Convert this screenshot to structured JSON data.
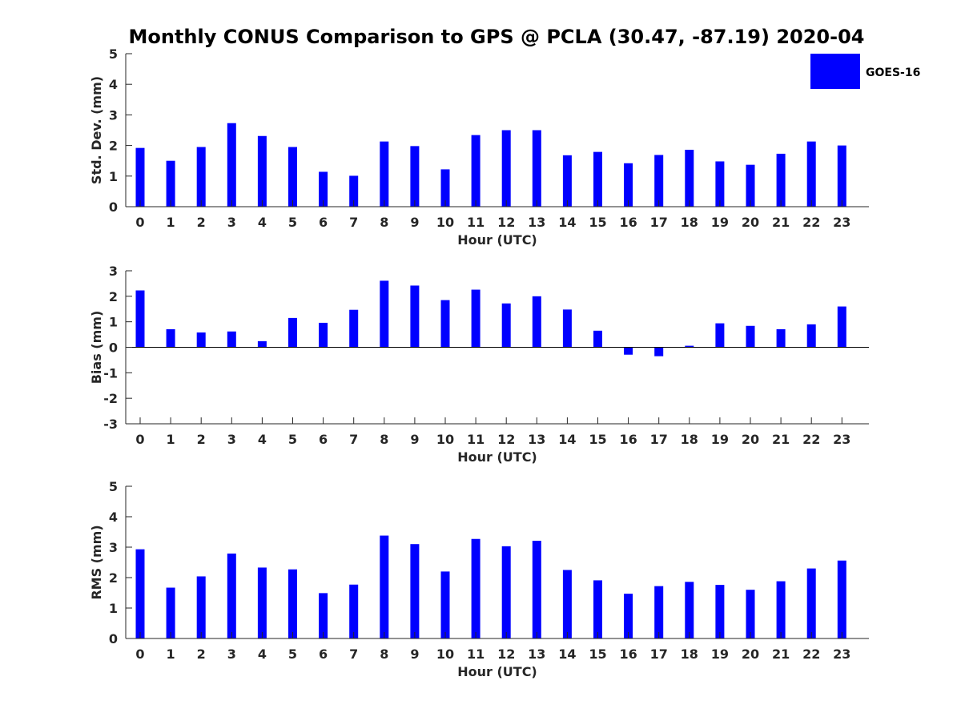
{
  "title": "Monthly CONUS Comparison to GPS @ PCLA (30.47, -87.19) 2020-04",
  "legend": {
    "label": "GOES-16",
    "color": "#0000ff",
    "placement": "top-right"
  },
  "chart_data": [
    {
      "type": "bar",
      "ylabel": "Std. Dev. (mm)",
      "xlabel": "Hour (UTC)",
      "ylim": [
        0,
        5
      ],
      "yticks": [
        0,
        1,
        2,
        3,
        4,
        5
      ],
      "categories": [
        "0",
        "1",
        "2",
        "3",
        "4",
        "5",
        "6",
        "7",
        "8",
        "9",
        "10",
        "11",
        "12",
        "13",
        "14",
        "15",
        "16",
        "17",
        "18",
        "19",
        "20",
        "21",
        "22",
        "23"
      ],
      "series": [
        {
          "name": "GOES-16",
          "color": "#0000ff",
          "values": [
            1.92,
            1.5,
            1.95,
            2.73,
            2.31,
            1.95,
            1.14,
            1.01,
            2.13,
            1.98,
            1.22,
            2.34,
            2.5,
            2.5,
            1.68,
            1.79,
            1.42,
            1.69,
            1.86,
            1.48,
            1.37,
            1.73,
            2.13,
            2.0
          ]
        }
      ]
    },
    {
      "type": "bar",
      "ylabel": "Bias (mm)",
      "xlabel": "Hour (UTC)",
      "ylim": [
        -3,
        3
      ],
      "yticks": [
        -3,
        -2,
        -1,
        0,
        1,
        2,
        3
      ],
      "categories": [
        "0",
        "1",
        "2",
        "3",
        "4",
        "5",
        "6",
        "7",
        "8",
        "9",
        "10",
        "11",
        "12",
        "13",
        "14",
        "15",
        "16",
        "17",
        "18",
        "19",
        "20",
        "21",
        "22",
        "23"
      ],
      "series": [
        {
          "name": "GOES-16",
          "color": "#0000ff",
          "values": [
            2.23,
            0.71,
            0.58,
            0.62,
            0.24,
            1.15,
            0.96,
            1.47,
            2.61,
            2.42,
            1.85,
            2.26,
            1.72,
            2.0,
            1.48,
            0.65,
            -0.29,
            -0.35,
            0.06,
            0.94,
            0.84,
            0.71,
            0.9,
            1.6
          ]
        }
      ]
    },
    {
      "type": "bar",
      "ylabel": "RMS (mm)",
      "xlabel": "Hour (UTC)",
      "ylim": [
        0,
        5
      ],
      "yticks": [
        0,
        1,
        2,
        3,
        4,
        5
      ],
      "categories": [
        "0",
        "1",
        "2",
        "3",
        "4",
        "5",
        "6",
        "7",
        "8",
        "9",
        "10",
        "11",
        "12",
        "13",
        "14",
        "15",
        "16",
        "17",
        "18",
        "19",
        "20",
        "21",
        "22",
        "23"
      ],
      "series": [
        {
          "name": "GOES-16",
          "color": "#0000ff",
          "values": [
            2.93,
            1.67,
            2.04,
            2.79,
            2.33,
            2.27,
            1.49,
            1.77,
            3.38,
            3.1,
            2.2,
            3.27,
            3.03,
            3.21,
            2.25,
            1.91,
            1.47,
            1.72,
            1.86,
            1.76,
            1.6,
            1.88,
            2.3,
            2.56
          ]
        }
      ]
    }
  ]
}
